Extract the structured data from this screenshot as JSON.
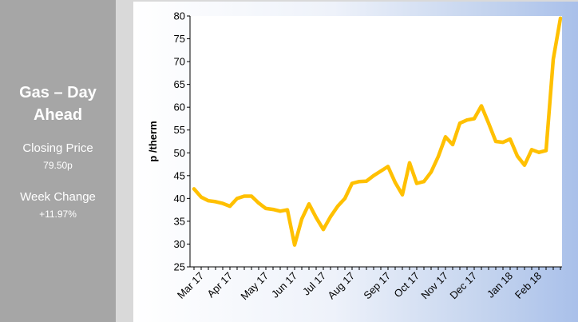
{
  "panel": {
    "title": "Gas – Day Ahead",
    "closing_label": "Closing Price",
    "closing_value": "79.50p",
    "week_label": "Week Change",
    "week_value": "+11.97%"
  },
  "colors": {
    "side_panel": "#a6a6a6",
    "line": "#ffc000",
    "plot_background": "#ffffff"
  },
  "chart_data": {
    "type": "line",
    "title": "",
    "xlabel": "",
    "ylabel": "p /therm",
    "ylim": [
      25,
      80
    ],
    "yticks": [
      25,
      30,
      35,
      40,
      45,
      50,
      55,
      60,
      65,
      70,
      75,
      80
    ],
    "month_labels": [
      "Mar 17",
      "Apr 17",
      "May 17",
      "Jun 17",
      "Jul 17",
      "Aug 17",
      "Sep 17",
      "Oct 17",
      "Nov 17",
      "Dec 17",
      "Jan 18",
      "Feb 18"
    ],
    "grid": false,
    "legend": "none",
    "series": [
      {
        "values": [
          42.1,
          40.3,
          39.5,
          39.3,
          38.9,
          38.3,
          40.0,
          40.5,
          40.5,
          39.0,
          37.8,
          37.6,
          37.2,
          37.5,
          29.8,
          35.5,
          38.8,
          35.8,
          33.2,
          36.0,
          38.3,
          40.0,
          43.3,
          43.7,
          43.8,
          45.0,
          46.0,
          47.0,
          43.5,
          40.8,
          47.8,
          43.3,
          43.7,
          45.8,
          49.2,
          53.5,
          51.8,
          56.5,
          57.2,
          57.5,
          60.3,
          56.5,
          52.5,
          52.3,
          53.0,
          49.3,
          47.3,
          50.7,
          50.1,
          50.5,
          70.5,
          79.5
        ]
      }
    ]
  }
}
